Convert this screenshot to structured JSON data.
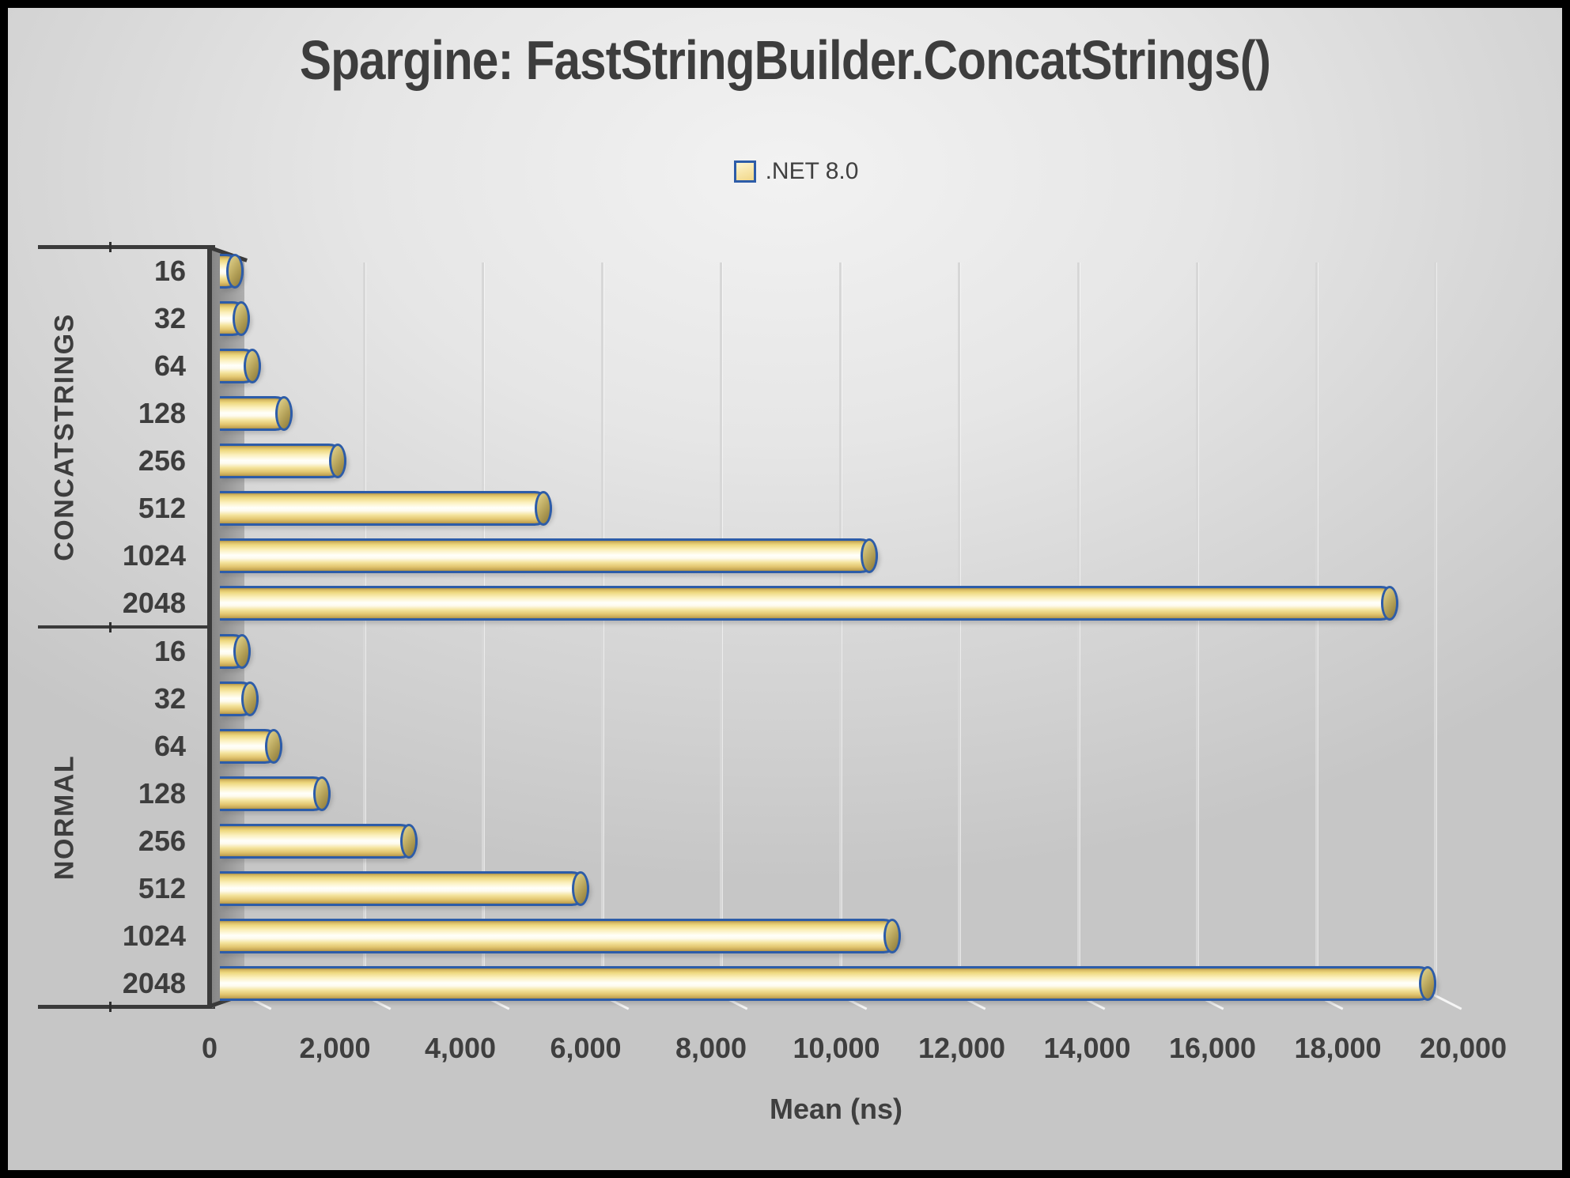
{
  "title": "Spargine: FastStringBuilder.ConcatStrings()",
  "legend": {
    "label": ".NET 8.0",
    "swatch_fill": "#F5E0A0",
    "swatch_border": "#2D5CA8"
  },
  "chart_data": {
    "type": "bar",
    "orientation": "horizontal",
    "title": "Spargine: FastStringBuilder.ConcatStrings()",
    "xlabel": "Mean (ns)",
    "series_name": ".NET 8.0",
    "groups": [
      {
        "label": "CONCATSTRINGS",
        "categories": [
          "16",
          "32",
          "64",
          "128",
          "256",
          "512",
          "1024",
          "2048"
        ],
        "values": [
          340,
          460,
          635,
          1145,
          2010,
          5315,
          10560,
          18930
        ]
      },
      {
        "label": "NORMAL",
        "categories": [
          "16",
          "32",
          "64",
          "128",
          "256",
          "512",
          "1024",
          "2048"
        ],
        "values": [
          475,
          600,
          985,
          1760,
          3160,
          5910,
          10930,
          19540
        ]
      }
    ],
    "xlim": [
      0,
      20000
    ],
    "xticks": [
      0,
      2000,
      4000,
      6000,
      8000,
      10000,
      12000,
      14000,
      16000,
      18000,
      20000
    ],
    "xtick_labels": [
      "0",
      "2,000",
      "4,000",
      "6,000",
      "8,000",
      "10,000",
      "12,000",
      "14,000",
      "16,000",
      "18,000",
      "20,000"
    ],
    "grid": true,
    "legend_position": "top-center",
    "style": "3d-cylinder"
  },
  "colors": {
    "bar_border": "#2d5ca8",
    "bar_gold": "#e9cd74",
    "bar_highlight": "#fffef4",
    "cap_fill": "#b3a057",
    "text": "#3f3f3f",
    "axis_line": "#3a3a3a",
    "wall": "#9c9c9c",
    "gridline": "#d7d7d7",
    "background_edge": "#c6c6c6",
    "background_center": "#f2f2f2"
  }
}
